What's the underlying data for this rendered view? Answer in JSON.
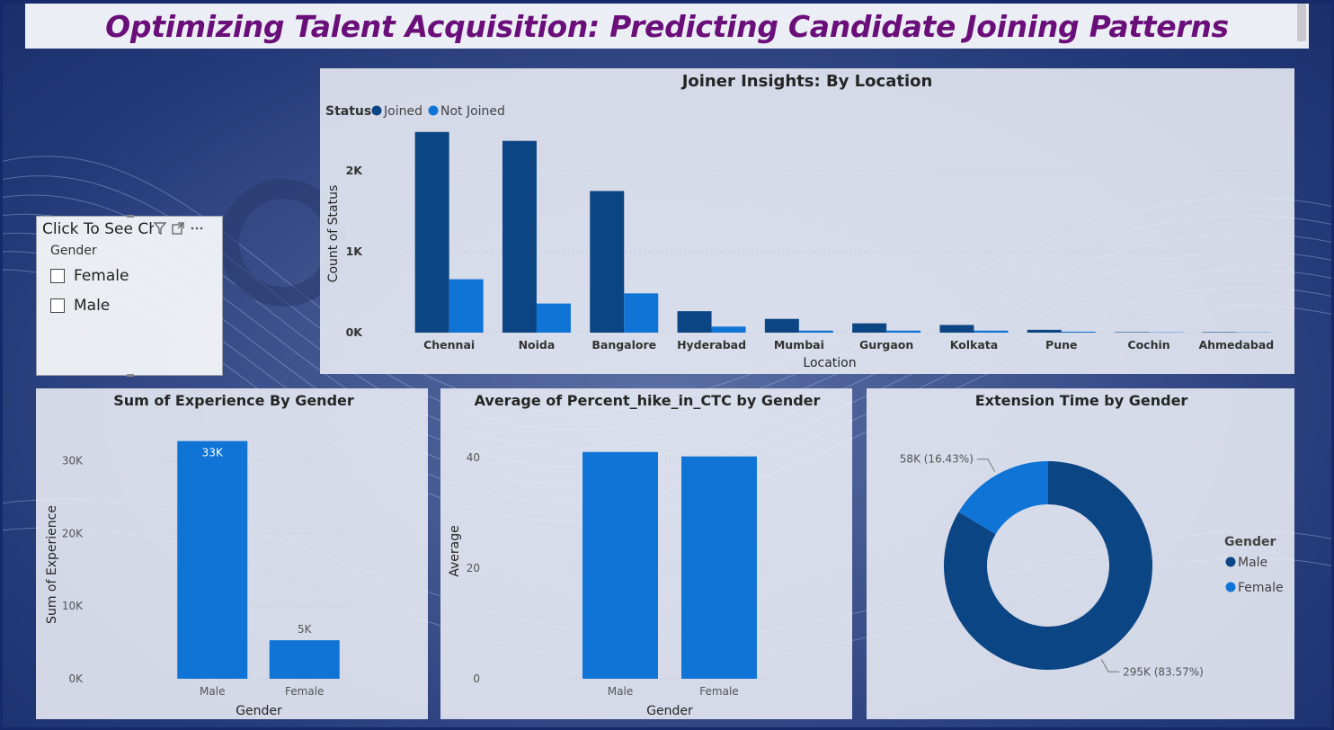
{
  "page": {
    "title": "Optimizing Talent Acquisition: Predicting Candidate Joining Patterns",
    "colors": {
      "joined": "#0b4584",
      "not_joined": "#0f74d6",
      "title": "#6a0f7a"
    }
  },
  "slicer": {
    "header": "Click To See Charts",
    "subtitle": "Gender",
    "options": [
      "Female",
      "Male"
    ],
    "icons": [
      "filter-icon",
      "focus-mode-icon",
      "more-options-icon"
    ]
  },
  "chart_data": [
    {
      "type": "bar",
      "title": "Joiner Insights: By Location",
      "legend_title": "Status",
      "legend_position": "top-left",
      "xlabel": "Location",
      "ylabel": "Count of Status",
      "categories": [
        "Chennai",
        "Noida",
        "Bangalore",
        "Hyderabad",
        "Mumbai",
        "Gurgaon",
        "Kolkata",
        "Pune",
        "Cochin",
        "Ahmedabad"
      ],
      "series": [
        {
          "name": "Joined",
          "color": "#0b4584",
          "values": [
            2480,
            2370,
            1750,
            265,
            170,
            115,
            95,
            35,
            6,
            6
          ]
        },
        {
          "name": "Not Joined",
          "color": "#0f74d6",
          "values": [
            660,
            360,
            485,
            75,
            25,
            25,
            25,
            12,
            4,
            3
          ]
        }
      ],
      "ylim": [
        0,
        2600
      ],
      "yticks": [
        "0K",
        "1K",
        "2K"
      ],
      "grid": true
    },
    {
      "type": "bar",
      "title": "Sum of Experience By Gender",
      "xlabel": "Gender",
      "ylabel": "Sum of Experience",
      "categories": [
        "Male",
        "Female"
      ],
      "values": [
        32700,
        5300
      ],
      "data_labels": [
        "33K",
        "5K"
      ],
      "ylim": [
        0,
        35000
      ],
      "yticks": [
        "0K",
        "10K",
        "20K",
        "30K"
      ],
      "color": "#0f74d6",
      "grid": true
    },
    {
      "type": "bar",
      "title": "Average of Percent_hike_in_CTC by Gender",
      "xlabel": "Gender",
      "ylabel": "Average",
      "categories": [
        "Male",
        "Female"
      ],
      "values": [
        41,
        40.2
      ],
      "ylim": [
        0,
        46
      ],
      "yticks": [
        "0",
        "20",
        "40"
      ],
      "color": "#0f74d6",
      "grid": true
    },
    {
      "type": "pie",
      "title": "Extension Time by Gender",
      "legend_title": "Gender",
      "legend_position": "right",
      "slices": [
        {
          "label": "Male",
          "value": 295,
          "display": "295K (83.57%)",
          "color": "#0b4584"
        },
        {
          "label": "Female",
          "value": 58,
          "display": "58K (16.43%)",
          "color": "#0f74d6"
        }
      ]
    }
  ]
}
